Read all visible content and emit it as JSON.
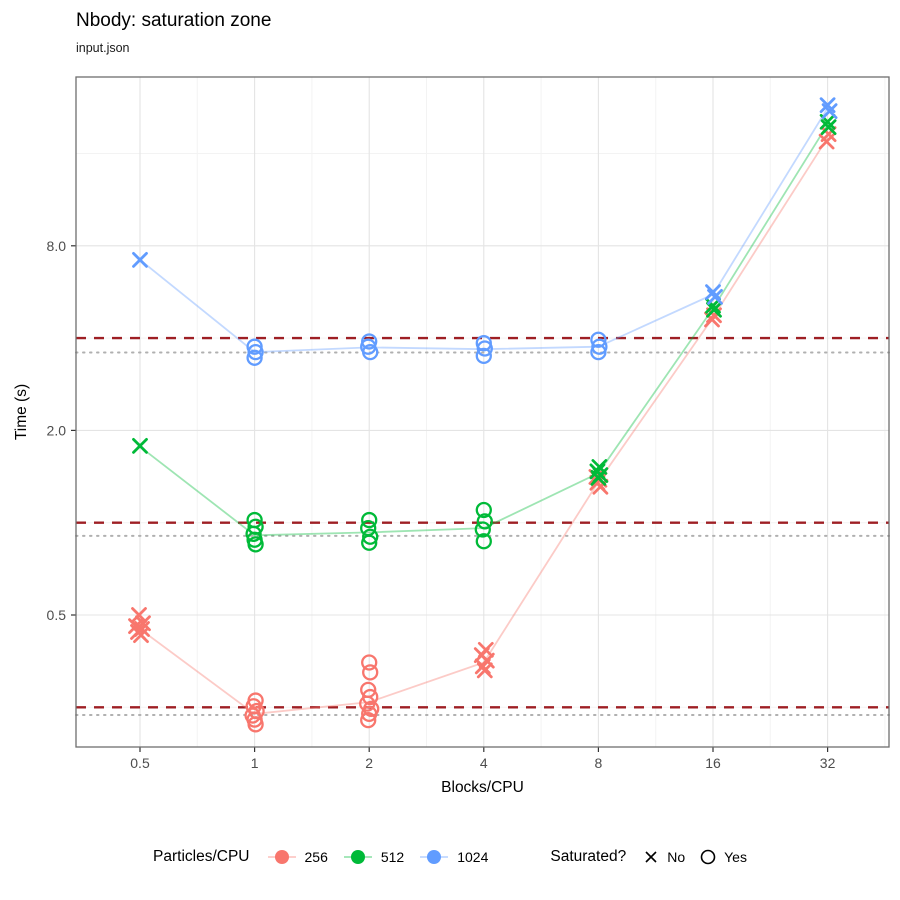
{
  "header": {
    "title": "Nbody: saturation zone",
    "subtitle": "input.json"
  },
  "legend": {
    "particles_title": "Particles/CPU",
    "particles": [
      {
        "label": "256",
        "color": "#F8766D"
      },
      {
        "label": "512",
        "color": "#00BA38"
      },
      {
        "label": "1024",
        "color": "#619CFF"
      }
    ],
    "saturated_title": "Saturated?",
    "shapes": [
      {
        "label": "No",
        "shape": "x"
      },
      {
        "label": "Yes",
        "shape": "circle"
      }
    ]
  },
  "chart_data": {
    "type": "scatter",
    "title": "Nbody: saturation zone",
    "subtitle": "input.json",
    "xlabel": "Blocks/CPU",
    "ylabel": "Time (s)",
    "x_scale": "log2",
    "y_scale": "log2",
    "x_ticks": [
      0.5,
      1,
      2,
      4,
      8,
      16,
      32
    ],
    "x_tick_labels": [
      "0.5",
      "1",
      "2",
      "4",
      "8",
      "16",
      "32"
    ],
    "y_ticks": [
      0.5,
      2,
      8
    ],
    "y_tick_labels": [
      "0.5",
      "2.0",
      "8.0"
    ],
    "y_minor_ticks": [
      0.25,
      1,
      4,
      16
    ],
    "xlim": [
      0.34,
      46
    ],
    "ylim": [
      0.18,
      28
    ],
    "grid": true,
    "legend_position": "bottom",
    "colors": {
      "grid_major": "#e4e4e4",
      "grid_minor": "#f3f3f3",
      "panel_border": "#6e6e6e",
      "tick_mark": "#333333",
      "ref_dashed": "#9e1f24",
      "ref_dotted": "#b0b0b0"
    },
    "ref_lines": {
      "dashed": [
        0.25,
        1.0,
        4.0
      ],
      "dotted": [
        0.236,
        0.906,
        3.59
      ]
    },
    "series": [
      {
        "name": "256",
        "color": "#F8766D",
        "trend": [
          [
            0.5,
            0.45
          ],
          [
            1,
            0.238
          ],
          [
            2,
            0.26
          ],
          [
            4,
            0.35
          ],
          [
            8,
            1.36
          ],
          [
            16,
            4.67
          ],
          [
            32,
            18.0
          ]
        ],
        "points": [
          {
            "x": 0.5,
            "y": 0.5,
            "sat": false,
            "dx": -1
          },
          {
            "x": 0.5,
            "y": 0.47,
            "sat": false,
            "dx": 3
          },
          {
            "x": 0.5,
            "y": 0.46,
            "sat": false,
            "dx": -4
          },
          {
            "x": 0.5,
            "y": 0.45,
            "sat": false,
            "dx": 2
          },
          {
            "x": 0.5,
            "y": 0.44,
            "sat": false,
            "dx": -2
          },
          {
            "x": 0.5,
            "y": 0.43,
            "sat": false,
            "dx": 1
          },
          {
            "x": 1,
            "y": 0.263,
            "sat": true,
            "dx": 1
          },
          {
            "x": 1,
            "y": 0.252,
            "sat": true,
            "dx": -1
          },
          {
            "x": 1,
            "y": 0.243,
            "sat": true,
            "dx": 2
          },
          {
            "x": 1,
            "y": 0.235,
            "sat": true,
            "dx": -2
          },
          {
            "x": 1,
            "y": 0.228,
            "sat": true,
            "dx": 0
          },
          {
            "x": 1,
            "y": 0.22,
            "sat": true,
            "dx": 1
          },
          {
            "x": 2,
            "y": 0.35,
            "sat": true,
            "dx": 0
          },
          {
            "x": 2,
            "y": 0.325,
            "sat": true,
            "dx": 1
          },
          {
            "x": 2,
            "y": 0.285,
            "sat": true,
            "dx": -1
          },
          {
            "x": 2,
            "y": 0.27,
            "sat": true,
            "dx": 1
          },
          {
            "x": 2,
            "y": 0.257,
            "sat": true,
            "dx": -2
          },
          {
            "x": 2,
            "y": 0.247,
            "sat": true,
            "dx": 2
          },
          {
            "x": 2,
            "y": 0.238,
            "sat": true,
            "dx": 0
          },
          {
            "x": 2,
            "y": 0.227,
            "sat": true,
            "dx": -1
          },
          {
            "x": 4,
            "y": 0.385,
            "sat": false,
            "dx": 2
          },
          {
            "x": 4,
            "y": 0.37,
            "sat": false,
            "dx": -2
          },
          {
            "x": 4,
            "y": 0.355,
            "sat": false,
            "dx": 3
          },
          {
            "x": 4,
            "y": 0.34,
            "sat": false,
            "dx": -1
          },
          {
            "x": 4,
            "y": 0.33,
            "sat": false,
            "dx": 1
          },
          {
            "x": 8,
            "y": 1.41,
            "sat": false,
            "dx": -2
          },
          {
            "x": 8,
            "y": 1.38,
            "sat": false,
            "dx": 1
          },
          {
            "x": 8,
            "y": 1.35,
            "sat": false,
            "dx": -1
          },
          {
            "x": 8,
            "y": 1.31,
            "sat": false,
            "dx": 2
          },
          {
            "x": 16,
            "y": 4.75,
            "sat": false,
            "dx": 1
          },
          {
            "x": 16,
            "y": 4.6,
            "sat": false,
            "dx": -1
          },
          {
            "x": 32,
            "y": 18.5,
            "sat": false,
            "dx": 1
          },
          {
            "x": 32,
            "y": 17.5,
            "sat": false,
            "dx": -1
          }
        ]
      },
      {
        "name": "512",
        "color": "#00BA38",
        "trend": [
          [
            0.5,
            1.77
          ],
          [
            1,
            0.91
          ],
          [
            2,
            0.93
          ],
          [
            4,
            0.96
          ],
          [
            8,
            1.45
          ],
          [
            16,
            5.0
          ],
          [
            32,
            19.9
          ]
        ],
        "points": [
          {
            "x": 0.5,
            "y": 1.78,
            "sat": false,
            "dx": 0
          },
          {
            "x": 1,
            "y": 1.02,
            "sat": true,
            "dx": 0
          },
          {
            "x": 1,
            "y": 0.97,
            "sat": true,
            "dx": 1
          },
          {
            "x": 1,
            "y": 0.92,
            "sat": true,
            "dx": -1
          },
          {
            "x": 1,
            "y": 0.88,
            "sat": true,
            "dx": 0
          },
          {
            "x": 1,
            "y": 0.85,
            "sat": true,
            "dx": 1
          },
          {
            "x": 2,
            "y": 1.02,
            "sat": true,
            "dx": 0
          },
          {
            "x": 2,
            "y": 0.96,
            "sat": true,
            "dx": -1
          },
          {
            "x": 2,
            "y": 0.9,
            "sat": true,
            "dx": 1
          },
          {
            "x": 2,
            "y": 0.86,
            "sat": true,
            "dx": 0
          },
          {
            "x": 4,
            "y": 1.1,
            "sat": true,
            "dx": 0
          },
          {
            "x": 4,
            "y": 1.01,
            "sat": true,
            "dx": 1
          },
          {
            "x": 4,
            "y": 0.95,
            "sat": true,
            "dx": -1
          },
          {
            "x": 4,
            "y": 0.87,
            "sat": true,
            "dx": 0
          },
          {
            "x": 8,
            "y": 1.52,
            "sat": false,
            "dx": 1
          },
          {
            "x": 8,
            "y": 1.47,
            "sat": false,
            "dx": -1
          },
          {
            "x": 8,
            "y": 1.43,
            "sat": false,
            "dx": 2
          },
          {
            "x": 8,
            "y": 1.4,
            "sat": false,
            "dx": 0
          },
          {
            "x": 16,
            "y": 5.1,
            "sat": false,
            "dx": 0
          },
          {
            "x": 16,
            "y": 4.95,
            "sat": false,
            "dx": 1
          },
          {
            "x": 32,
            "y": 20.3,
            "sat": false,
            "dx": 0
          },
          {
            "x": 32,
            "y": 19.5,
            "sat": false,
            "dx": 1
          }
        ]
      },
      {
        "name": "1024",
        "color": "#619CFF",
        "trend": [
          [
            0.5,
            7.2
          ],
          [
            1,
            3.6
          ],
          [
            2,
            3.73
          ],
          [
            4,
            3.68
          ],
          [
            8,
            3.75
          ],
          [
            16,
            5.55
          ],
          [
            32,
            22.5
          ]
        ],
        "points": [
          {
            "x": 0.5,
            "y": 7.2,
            "sat": false,
            "dx": 0
          },
          {
            "x": 1,
            "y": 3.75,
            "sat": true,
            "dx": 0
          },
          {
            "x": 1,
            "y": 3.6,
            "sat": true,
            "dx": 1
          },
          {
            "x": 1,
            "y": 3.45,
            "sat": true,
            "dx": 0
          },
          {
            "x": 2,
            "y": 3.9,
            "sat": true,
            "dx": 0
          },
          {
            "x": 2,
            "y": 3.75,
            "sat": true,
            "dx": -1
          },
          {
            "x": 2,
            "y": 3.6,
            "sat": true,
            "dx": 1
          },
          {
            "x": 4,
            "y": 3.85,
            "sat": true,
            "dx": 0
          },
          {
            "x": 4,
            "y": 3.7,
            "sat": true,
            "dx": 1
          },
          {
            "x": 4,
            "y": 3.5,
            "sat": true,
            "dx": 0
          },
          {
            "x": 8,
            "y": 3.95,
            "sat": true,
            "dx": 0
          },
          {
            "x": 8,
            "y": 3.75,
            "sat": true,
            "dx": 1
          },
          {
            "x": 8,
            "y": 3.6,
            "sat": true,
            "dx": 0
          },
          {
            "x": 16,
            "y": 5.65,
            "sat": false,
            "dx": 0
          },
          {
            "x": 16,
            "y": 5.45,
            "sat": false,
            "dx": 2
          },
          {
            "x": 32,
            "y": 23.0,
            "sat": false,
            "dx": 0
          },
          {
            "x": 32,
            "y": 22.0,
            "sat": false,
            "dx": 2
          }
        ]
      }
    ]
  }
}
